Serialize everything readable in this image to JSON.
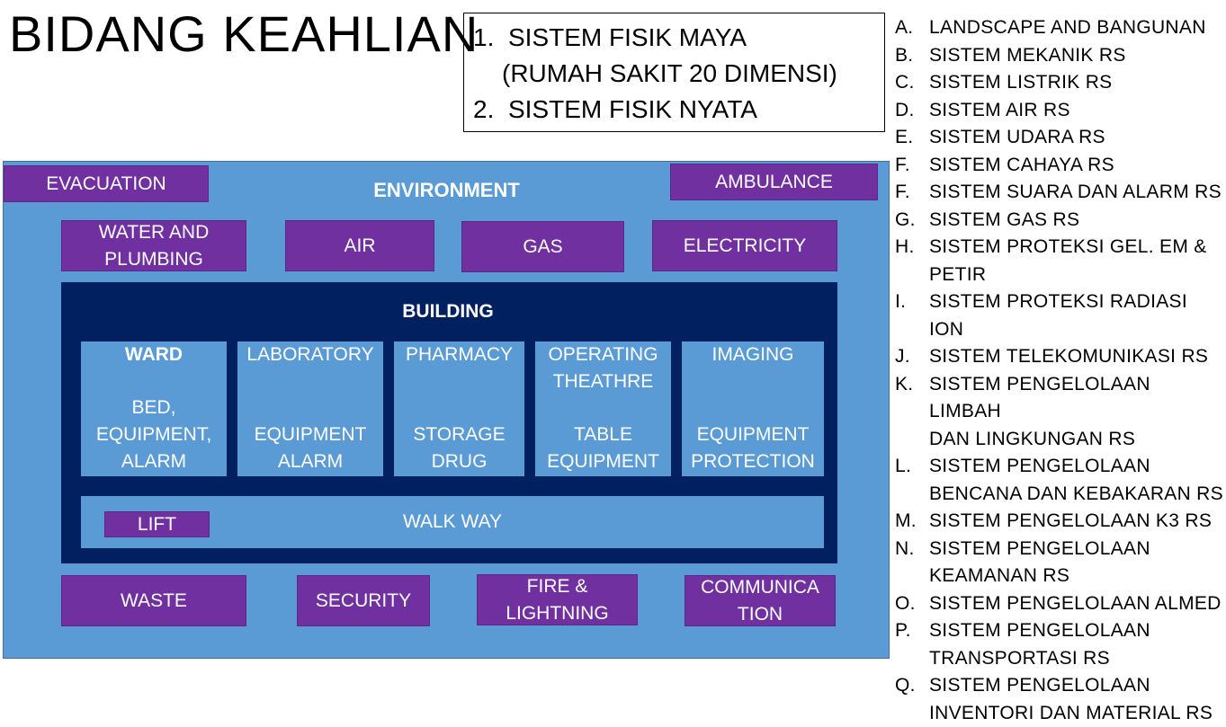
{
  "title": "BIDANG KEAHLIAN",
  "systems": {
    "line1_num": "1.",
    "line1_text": "SISTEM FISIK MAYA",
    "line1_cont": "(RUMAH SAKIT 20 DIMENSI)",
    "line2_num": "2.",
    "line2_text": "SISTEM FISIK NYATA"
  },
  "diagram": {
    "environment": "ENVIRONMENT",
    "evacuation": "EVACUATION",
    "ambulance": "AMBULANCE",
    "utilities": {
      "water_line1": "WATER AND",
      "water_line2": "PLUMBING",
      "air": "AIR",
      "gas": "GAS",
      "electricity": "ELECTRICITY"
    },
    "building": {
      "title": "BUILDING",
      "ward": {
        "name": "WARD",
        "d1": "BED,",
        "d2": "EQUIPMENT,",
        "d3": "ALARM"
      },
      "laboratory": {
        "name": "LABORATORY",
        "d1": "EQUIPMENT",
        "d2": "ALARM"
      },
      "pharmacy": {
        "name": "PHARMACY",
        "d1": "STORAGE",
        "d2": "DRUG"
      },
      "operating": {
        "name1": "OPERATING",
        "name2": "THEATHRE",
        "d1": "TABLE",
        "d2": "EQUIPMENT"
      },
      "imaging": {
        "name": "IMAGING",
        "d1": "EQUIPMENT",
        "d2": "PROTECTION"
      },
      "lift": "LIFT",
      "walkway": "WALK WAY"
    },
    "bottom": {
      "waste": "WASTE",
      "security": "SECURITY",
      "fire_line1": "FIRE &",
      "fire_line2": "LIGHTNING",
      "comm_line1": "COMMUNICA",
      "comm_line2": "TION"
    }
  },
  "list": [
    {
      "letter": "A.",
      "line1": "LANDSCAPE AND BANGUNAN"
    },
    {
      "letter": "B.",
      "line1": "SISTEM MEKANIK RS"
    },
    {
      "letter": "C.",
      "line1": "SISTEM LISTRIK RS"
    },
    {
      "letter": "D.",
      "line1": "SISTEM AIR RS"
    },
    {
      "letter": "E.",
      "line1": "SISTEM UDARA RS"
    },
    {
      "letter": "F.",
      "line1": "SISTEM CAHAYA RS"
    },
    {
      "letter": "F.",
      "line1": "SISTEM SUARA DAN ALARM RS"
    },
    {
      "letter": "G.",
      "line1": "SISTEM GAS RS"
    },
    {
      "letter": "H.",
      "line1": "SISTEM PROTEKSI GEL. EM &",
      "line2": "PETIR"
    },
    {
      "letter": "I.",
      "line1": "SISTEM PROTEKSI RADIASI ION"
    },
    {
      "letter": "J.",
      "line1": "SISTEM TELEKOMUNIKASI RS"
    },
    {
      "letter": "K.",
      "line1": "SISTEM PENGELOLAAN LIMBAH",
      "line2": "DAN LINGKUNGAN RS"
    },
    {
      "letter": "L.",
      "line1": "SISTEM PENGELOLAAN",
      "line2": "BENCANA DAN KEBAKARAN RS"
    },
    {
      "letter": "M.",
      "line1": "SISTEM PENGELOLAAN K3 RS"
    },
    {
      "letter": "N.",
      "line1": "SISTEM PENGELOLAAN",
      "line2": "KEAMANAN RS"
    },
    {
      "letter": "O.",
      "line1": "SISTEM PENGELOLAAN ALMED"
    },
    {
      "letter": "P.",
      "line1": "SISTEM PENGELOLAAN",
      "line2": "TRANSPORTASI RS"
    },
    {
      "letter": "Q.",
      "line1": "SISTEM PENGELOLAAN",
      "line2": "INVENTORI DAN MATERIAL RS"
    }
  ]
}
